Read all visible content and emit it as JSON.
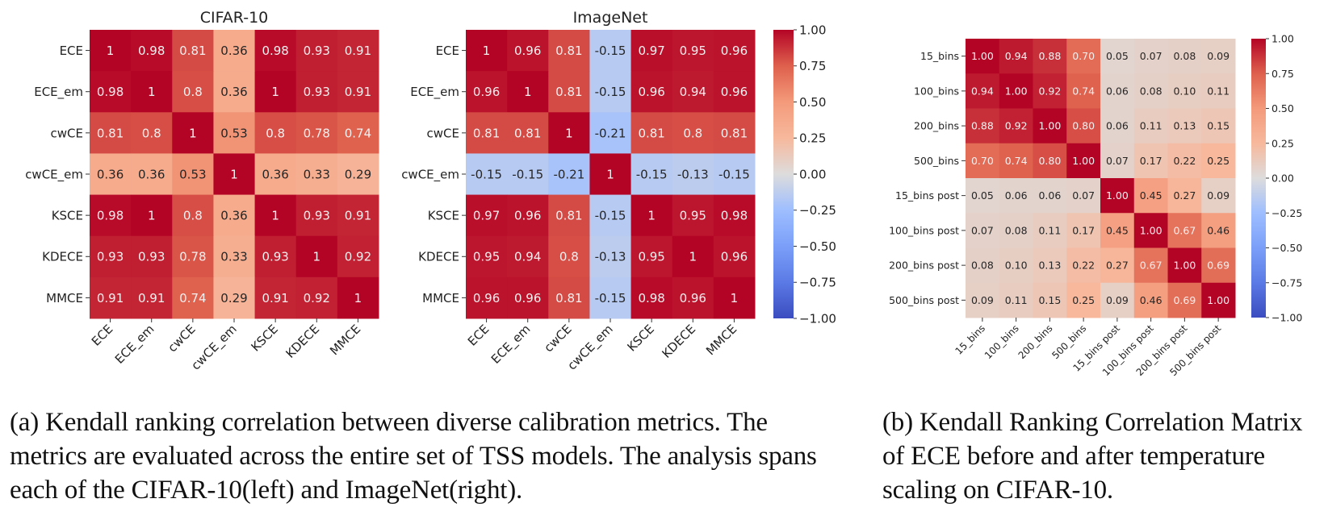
{
  "chart_data": [
    {
      "id": "cifar",
      "type": "heatmap",
      "title": "CIFAR-10",
      "labels": [
        "ECE",
        "ECE_em",
        "cwCE",
        "cwCE_em",
        "KSCE",
        "KDECE",
        "MMCE"
      ],
      "values": [
        [
          1,
          0.98,
          0.81,
          0.36,
          0.98,
          0.93,
          0.91
        ],
        [
          0.98,
          1,
          0.8,
          0.36,
          1,
          0.93,
          0.91
        ],
        [
          0.81,
          0.8,
          1,
          0.53,
          0.8,
          0.78,
          0.74
        ],
        [
          0.36,
          0.36,
          0.53,
          1,
          0.36,
          0.33,
          0.29
        ],
        [
          0.98,
          1,
          0.8,
          0.36,
          1,
          0.93,
          0.91
        ],
        [
          0.93,
          0.93,
          0.78,
          0.33,
          0.93,
          1,
          0.92
        ],
        [
          0.91,
          0.91,
          0.74,
          0.29,
          0.91,
          0.92,
          1
        ]
      ],
      "value_format": "short",
      "colormap": "coolwarm",
      "vmin": -1,
      "vmax": 1
    },
    {
      "id": "imagenet",
      "type": "heatmap",
      "title": "ImageNet",
      "labels": [
        "ECE",
        "ECE_em",
        "cwCE",
        "cwCE_em",
        "KSCE",
        "KDECE",
        "MMCE"
      ],
      "values": [
        [
          1,
          0.96,
          0.81,
          -0.15,
          0.97,
          0.95,
          0.96
        ],
        [
          0.96,
          1,
          0.81,
          -0.15,
          0.96,
          0.94,
          0.96
        ],
        [
          0.81,
          0.81,
          1,
          -0.21,
          0.81,
          0.8,
          0.81
        ],
        [
          -0.15,
          -0.15,
          -0.21,
          1,
          -0.15,
          -0.13,
          -0.15
        ],
        [
          0.97,
          0.96,
          0.81,
          -0.15,
          1,
          0.95,
          0.98
        ],
        [
          0.95,
          0.94,
          0.8,
          -0.13,
          0.95,
          1,
          0.96
        ],
        [
          0.96,
          0.96,
          0.81,
          -0.15,
          0.98,
          0.96,
          1
        ]
      ],
      "value_format": "short",
      "colormap": "coolwarm",
      "vmin": -1,
      "vmax": 1,
      "colorbar": {
        "ticks": [
          "1.00",
          "0.75",
          "0.50",
          "0.25",
          "0.00",
          "−0.25",
          "−0.50",
          "−0.75",
          "−1.00"
        ]
      }
    },
    {
      "id": "bins",
      "type": "heatmap",
      "title": "",
      "labels": [
        "15_bins",
        "100_bins",
        "200_bins",
        "500_bins",
        "15_bins post",
        "100_bins post",
        "200_bins post",
        "500_bins post"
      ],
      "values": [
        [
          1.0,
          0.94,
          0.88,
          0.7,
          0.05,
          0.07,
          0.08,
          0.09
        ],
        [
          0.94,
          1.0,
          0.92,
          0.74,
          0.06,
          0.08,
          0.1,
          0.11
        ],
        [
          0.88,
          0.92,
          1.0,
          0.8,
          0.06,
          0.11,
          0.13,
          0.15
        ],
        [
          0.7,
          0.74,
          0.8,
          1.0,
          0.07,
          0.17,
          0.22,
          0.25
        ],
        [
          0.05,
          0.06,
          0.06,
          0.07,
          1.0,
          0.45,
          0.27,
          0.09
        ],
        [
          0.07,
          0.08,
          0.11,
          0.17,
          0.45,
          1.0,
          0.67,
          0.46
        ],
        [
          0.08,
          0.1,
          0.13,
          0.22,
          0.27,
          0.67,
          1.0,
          0.69
        ],
        [
          0.09,
          0.11,
          0.15,
          0.25,
          0.09,
          0.46,
          0.69,
          1.0
        ]
      ],
      "value_format": "fixed2",
      "colormap": "coolwarm",
      "vmin": -1,
      "vmax": 1,
      "colorbar": {
        "ticks": [
          "1.00",
          "0.75",
          "0.50",
          "0.25",
          "0.00",
          "−0.25",
          "−0.50",
          "−0.75",
          "−1.00"
        ]
      }
    }
  ],
  "captions": {
    "a": "(a) Kendall ranking correlation between diverse calibration metrics. The metrics are evaluated across the entire set of TSS models. The analysis spans each of the CIFAR-10(left) and ImageNet(right).",
    "b": "(b) Kendall Ranking Correlation Matrix of ECE before and after temperature scaling on CIFAR-10."
  }
}
